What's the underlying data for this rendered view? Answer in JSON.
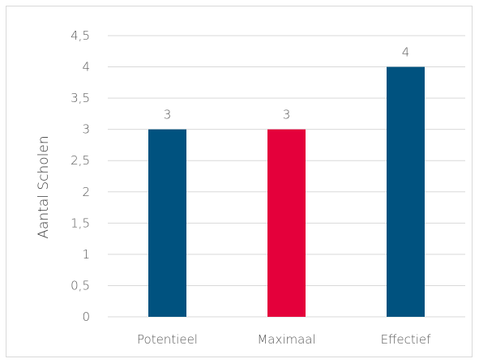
{
  "chart_data": {
    "type": "bar",
    "categories": [
      "Potentieel",
      "Maximaal",
      "Effectief"
    ],
    "values": [
      3,
      3,
      4
    ],
    "value_labels": [
      "3",
      "3",
      "4"
    ],
    "bar_colors": [
      "#00527f",
      "#e4003b",
      "#00527f"
    ],
    "title": "",
    "xlabel": "",
    "ylabel": "Aantal Scholen",
    "ylim": [
      0,
      4.5
    ],
    "yticks": [
      0,
      0.5,
      1,
      1.5,
      2,
      2.5,
      3,
      3.5,
      4,
      4.5
    ],
    "ytick_labels": [
      "0",
      "0,5",
      "1",
      "1,5",
      "2",
      "2,5",
      "3",
      "3,5",
      "4",
      "4,5"
    ],
    "grid": true,
    "legend": "none"
  }
}
